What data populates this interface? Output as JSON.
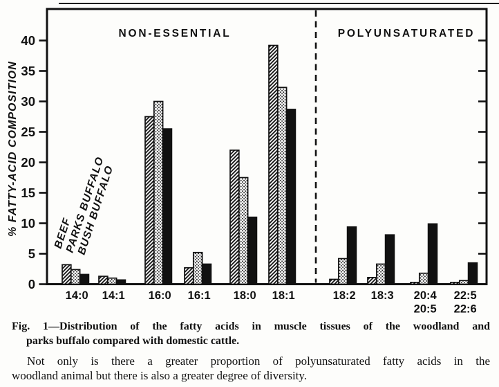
{
  "figure": {
    "caption": {
      "line1": "Fig. 1—Distribution of the fatty acids in muscle tissues of the woodland and",
      "line2": "parks buffalo compared with domestic cattle."
    },
    "body": {
      "line1": "Not only is there a greater proportion of polyunsaturated fatty acids in the",
      "line2": "woodland animal but there is also a greater degree of diversity."
    }
  },
  "chart_data": {
    "type": "bar",
    "title": "",
    "xlabel": "",
    "ylabel": "% FATTY-ACID COMPOSITION",
    "ylim": [
      0,
      45
    ],
    "yticks": [
      0,
      5,
      10,
      15,
      20,
      25,
      30,
      35,
      40
    ],
    "grid": false,
    "legend_position": "rotated-labels-above-first-group",
    "sections": [
      {
        "label": "NON-ESSENTIAL",
        "categories": [
          "14:0",
          "14:1",
          "16:0",
          "16:1",
          "18:0",
          "18:1"
        ]
      },
      {
        "label": "POLYUNSATURATED",
        "categories": [
          "18:2",
          "18:3",
          "20:4\n20:5",
          "22:5\n22:6"
        ]
      }
    ],
    "divider_after_category": "18:1",
    "categories": [
      "14:0",
      "14:1",
      "16:0",
      "16:1",
      "18:0",
      "18:1",
      "18:2",
      "18:3",
      "20:4\n20:5",
      "22:5\n22:6"
    ],
    "series": [
      {
        "name": "BEEF",
        "fill": "diagonal-hatch",
        "values": [
          3.2,
          1.3,
          27.5,
          2.7,
          22.0,
          39.2,
          0.8,
          1.1,
          0.3,
          0.3
        ]
      },
      {
        "name": "PARKS BUFFALO",
        "fill": "stipple-dots",
        "values": [
          2.4,
          1.0,
          30.0,
          5.2,
          17.5,
          32.3,
          4.2,
          3.3,
          1.8,
          0.6
        ]
      },
      {
        "name": "BUSH BUFFALO",
        "fill": "solid-black",
        "values": [
          1.6,
          0.7,
          25.5,
          3.3,
          11.0,
          28.7,
          9.4,
          8.1,
          9.9,
          3.5
        ]
      }
    ],
    "colors": {
      "ink": "#111111",
      "paper": "#fdfdfb"
    }
  }
}
